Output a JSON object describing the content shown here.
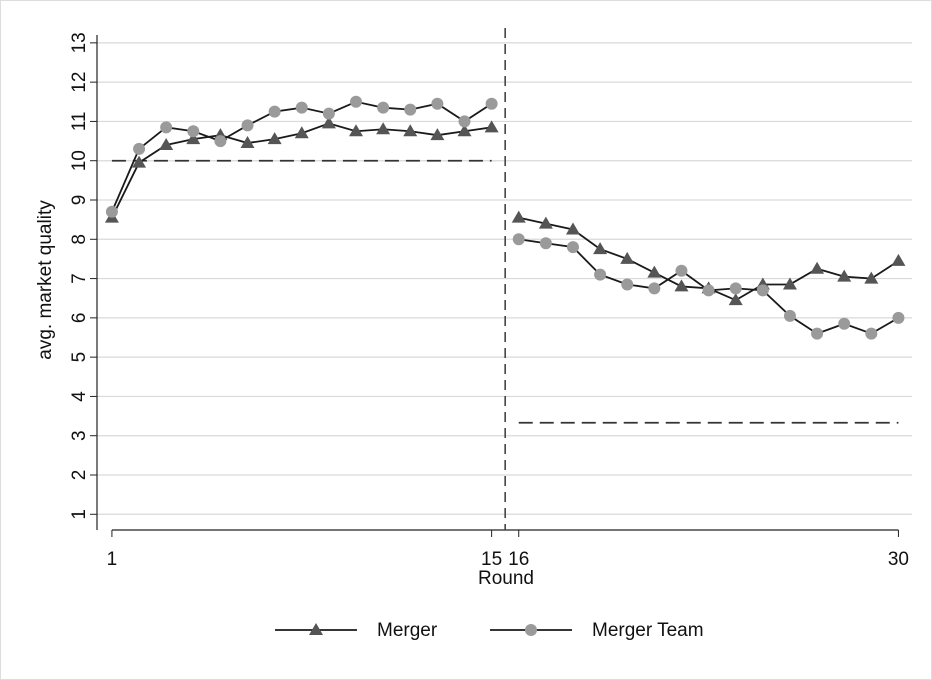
{
  "chart_data": {
    "type": "line",
    "x_label": "Round",
    "y_label": "avg. market quality",
    "x": [
      1,
      2,
      3,
      4,
      5,
      6,
      7,
      8,
      9,
      10,
      11,
      12,
      13,
      14,
      15,
      16,
      17,
      18,
      19,
      20,
      21,
      22,
      23,
      24,
      25,
      26,
      27,
      28,
      29,
      30
    ],
    "series": [
      {
        "name": "Merger",
        "color": "#555555",
        "marker": "triangle",
        "values": [
          8.55,
          9.95,
          10.4,
          10.55,
          10.65,
          10.45,
          10.55,
          10.7,
          10.95,
          10.75,
          10.8,
          10.75,
          10.65,
          10.75,
          10.85,
          8.55,
          8.4,
          8.25,
          7.75,
          7.5,
          7.15,
          6.8,
          6.75,
          6.45,
          6.85,
          6.85,
          7.25,
          7.05,
          7.0,
          7.45
        ]
      },
      {
        "name": "Merger Team",
        "color": "#9a9a9a",
        "marker": "circle",
        "values": [
          8.7,
          10.3,
          10.85,
          10.75,
          10.5,
          10.9,
          11.25,
          11.35,
          11.2,
          11.5,
          11.35,
          11.3,
          11.45,
          11.0,
          11.45,
          8.0,
          7.9,
          7.8,
          7.1,
          6.85,
          6.75,
          7.2,
          6.7,
          6.75,
          6.7,
          6.05,
          5.6,
          5.85,
          5.6,
          6.0
        ]
      }
    ],
    "line_color": "#1a1a1a",
    "xlim": [
      0.45,
      30.5
    ],
    "ylim": [
      0.6,
      13.2
    ],
    "xticks": [
      1,
      15,
      16,
      30
    ],
    "yticks": [
      1,
      2,
      3,
      4,
      5,
      6,
      7,
      8,
      9,
      10,
      11,
      12,
      13
    ],
    "grid": true,
    "vline": 15.5,
    "reference_lines": [
      {
        "y": 10,
        "x": [
          1,
          15
        ]
      },
      {
        "y": 3.33,
        "x": [
          16,
          30
        ]
      }
    ],
    "legend": "bottom"
  }
}
